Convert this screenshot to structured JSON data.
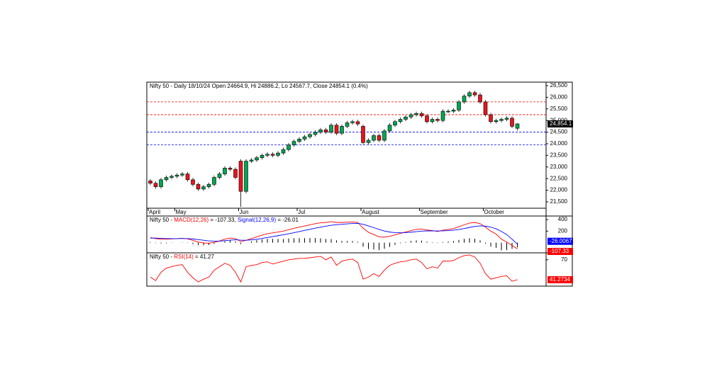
{
  "chart_data": [
    {
      "type": "candlestick",
      "title": "Nifty 50 - Daily 18/10/24 Open 24664.9, Hi 24886.2, Lo 24567.7, Close 24854.1 (0.4%)",
      "categories": [
        "April",
        null,
        null,
        null,
        null,
        "May",
        null,
        null,
        null,
        null,
        null,
        null,
        null,
        null,
        null,
        null,
        null,
        "Jun",
        null,
        null,
        null,
        null,
        null,
        null,
        null,
        null,
        null,
        null,
        "Jul",
        null,
        null,
        null,
        null,
        null,
        null,
        null,
        null,
        null,
        null,
        null,
        "August",
        null,
        null,
        null,
        null,
        null,
        null,
        null,
        null,
        null,
        null,
        "September",
        null,
        null,
        null,
        null,
        null,
        null,
        null,
        null,
        null,
        null,
        null,
        "October",
        null,
        null,
        null,
        null,
        null,
        null
      ],
      "open": [
        22400,
        22300,
        22150,
        22450,
        22550,
        22600,
        22650,
        22700,
        22450,
        22250,
        22050,
        22150,
        22250,
        22550,
        22700,
        22950,
        22900,
        23250,
        21950,
        23250,
        23300,
        23400,
        23500,
        23550,
        23500,
        23600,
        23750,
        23950,
        24100,
        24200,
        24300,
        24400,
        24500,
        24600,
        24500,
        24800,
        24450,
        24750,
        24900,
        24950,
        24750,
        24050,
        24150,
        24350,
        24150,
        24550,
        24800,
        24950,
        25050,
        25150,
        25250,
        25300,
        25200,
        24950,
        25050,
        25000,
        25400,
        25400,
        25450,
        25800,
        26050,
        26200,
        26100,
        25800,
        25250,
        24950,
        25000,
        25050,
        25100,
        24664.9
      ],
      "high": [
        22480,
        22380,
        22530,
        22630,
        22680,
        22730,
        22780,
        22780,
        22530,
        22330,
        22230,
        22330,
        22630,
        22780,
        23030,
        23030,
        22980,
        23330,
        23330,
        23380,
        23480,
        23580,
        23630,
        23630,
        23680,
        23830,
        24030,
        24180,
        24280,
        24380,
        24480,
        24580,
        24680,
        24680,
        24880,
        24880,
        24830,
        24980,
        25030,
        25030,
        24830,
        24230,
        24430,
        24430,
        24630,
        24880,
        25030,
        25130,
        25230,
        25330,
        25380,
        25380,
        25280,
        25130,
        25130,
        25480,
        25480,
        25530,
        25880,
        26130,
        26280,
        26280,
        26180,
        25880,
        25330,
        25080,
        25130,
        25180,
        25180,
        24886.2
      ],
      "low": [
        22220,
        22070,
        22070,
        22370,
        22470,
        22520,
        22570,
        22370,
        22170,
        21970,
        21970,
        22070,
        22170,
        22470,
        22620,
        22820,
        22470,
        21280,
        21870,
        23170,
        23220,
        23320,
        23420,
        23420,
        23420,
        23520,
        23670,
        23870,
        24020,
        24120,
        24220,
        24320,
        24420,
        24420,
        24420,
        24370,
        24370,
        24670,
        24820,
        24770,
        23970,
        23970,
        24070,
        24070,
        24070,
        24470,
        24720,
        24870,
        24970,
        25070,
        25170,
        25120,
        24870,
        24870,
        24920,
        24920,
        25320,
        25320,
        25370,
        25720,
        25970,
        26020,
        25720,
        25170,
        24870,
        24870,
        24920,
        24970,
        24670,
        24567.7
      ],
      "close": [
        22300,
        22150,
        22450,
        22550,
        22600,
        22650,
        22700,
        22450,
        22250,
        22050,
        22150,
        22250,
        22550,
        22700,
        22950,
        22900,
        22550,
        21950,
        23250,
        23300,
        23400,
        23500,
        23550,
        23500,
        23600,
        23750,
        23950,
        24100,
        24200,
        24300,
        24400,
        24500,
        24600,
        24500,
        24800,
        24450,
        24750,
        24900,
        24950,
        24850,
        24050,
        24150,
        24350,
        24150,
        24550,
        24800,
        24950,
        25050,
        25150,
        25250,
        25300,
        25200,
        24950,
        25050,
        25000,
        25400,
        25400,
        25450,
        25800,
        26050,
        26200,
        26100,
        25800,
        25250,
        24950,
        25000,
        25050,
        25100,
        24750,
        24854.1
      ],
      "up_color": "#00a651",
      "down_color": "#e8141c",
      "last_label": "24,854.1",
      "levels": [
        {
          "value": 25800,
          "color": "#ff0000"
        },
        {
          "value": 25250,
          "color": "#ff0000"
        },
        {
          "value": 24500,
          "color": "#0000ff"
        },
        {
          "value": 23950,
          "color": "#0000ff"
        }
      ],
      "ylim": [
        21255,
        26620
      ],
      "yticks": [
        {
          "value": 21500,
          "label": "21,500"
        },
        {
          "value": 22000,
          "label": "22,000"
        },
        {
          "value": 22500,
          "label": "22,500"
        },
        {
          "value": 23000,
          "label": "23,000"
        },
        {
          "value": 23500,
          "label": "23,500"
        },
        {
          "value": 24000,
          "label": "24,000"
        },
        {
          "value": 24500,
          "label": "24,500"
        },
        {
          "value": 25000,
          "label": "25,000"
        },
        {
          "value": 25500,
          "label": "25,500"
        },
        {
          "value": 26000,
          "label": "26,000"
        },
        {
          "value": 26500,
          "label": "26,500"
        }
      ]
    },
    {
      "type": "line",
      "title": "Nifty 50 - ",
      "histogram_color": "#000000",
      "series": [
        {
          "name": "MACD(12,26)",
          "color": "#ff0000",
          "value_label": " = -107.33, ",
          "box_label": "-107.33",
          "values": [
            90,
            70,
            60,
            60,
            65,
            70,
            75,
            65,
            40,
            10,
            -5,
            -10,
            5,
            30,
            60,
            80,
            70,
            20,
            40,
            70,
            100,
            130,
            155,
            170,
            185,
            200,
            225,
            250,
            270,
            290,
            310,
            330,
            345,
            350,
            365,
            350,
            350,
            355,
            360,
            350,
            250,
            180,
            140,
            100,
            95,
            110,
            135,
            160,
            185,
            210,
            230,
            235,
            220,
            210,
            195,
            215,
            230,
            245,
            275,
            310,
            340,
            350,
            330,
            270,
            200,
            150,
            60,
            10,
            -50,
            -107.33
          ]
        },
        {
          "name": "Signal(12,26,9)",
          "color": "#0000ff",
          "value_label": " = -26.01",
          "box_label": "-26.0067",
          "values": [
            80,
            78,
            74,
            71,
            70,
            70,
            71,
            70,
            64,
            53,
            42,
            31,
            26,
            27,
            34,
            43,
            49,
            43,
            42,
            48,
            58,
            73,
            89,
            105,
            121,
            137,
            154,
            173,
            192,
            212,
            231,
            251,
            270,
            286,
            302,
            311,
            319,
            326,
            333,
            336,
            319,
            291,
            261,
            229,
            202,
            184,
            174,
            171,
            174,
            181,
            191,
            200,
            204,
            205,
            203,
            205,
            210,
            217,
            228,
            245,
            264,
            281,
            291,
            287,
            270,
            240,
            195,
            140,
            60,
            -26.0067
          ]
        }
      ],
      "ylim": [
        -165,
        450
      ],
      "yticks": [
        200,
        400
      ]
    },
    {
      "type": "line",
      "title": "Nifty 50 - ",
      "series": [
        {
          "name": "RSI(14)",
          "color": "#ff0000",
          "value_label": " = 41.27",
          "box_label": "41.2734",
          "values": [
            45,
            40,
            52,
            58,
            60,
            62,
            63,
            52,
            44,
            38,
            42,
            45,
            55,
            60,
            65,
            62,
            52,
            38,
            60,
            62,
            63,
            66,
            67,
            64,
            66,
            68,
            70,
            71,
            72,
            72,
            73,
            74,
            75,
            70,
            74,
            62,
            68,
            70,
            71,
            66,
            42,
            45,
            50,
            46,
            55,
            62,
            65,
            67,
            68,
            70,
            71,
            66,
            57,
            60,
            58,
            68,
            68,
            69,
            73,
            76,
            77,
            74,
            65,
            50,
            42,
            44,
            46,
            47,
            39,
            41.2734
          ]
        }
      ],
      "ylim": [
        33,
        79
      ],
      "yticks": [
        70
      ]
    }
  ]
}
